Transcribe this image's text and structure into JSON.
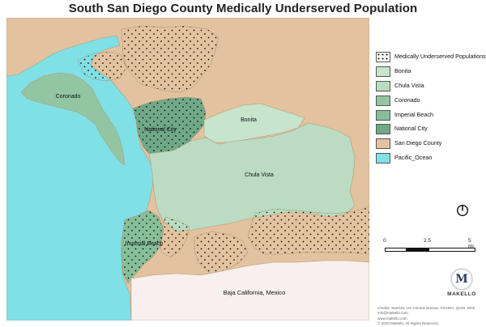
{
  "title": "South San Diego County Medically Underserved Population",
  "map": {
    "labels": {
      "coronado": "Coronado",
      "national_city": "National City",
      "bonita": "Bonita",
      "chula_vista": "Chula Vista",
      "imperial_beach": "Imperial Beach",
      "baja": "Baja California, Mexico"
    },
    "colors": {
      "san_diego_county": "#e3c39f",
      "pacific_ocean": "#7fe0e6",
      "chula_vista": "#bbdcc2",
      "bonita": "#c7e4cc",
      "coronado": "#92c6a3",
      "imperial_beach": "#86bf9a",
      "national_city": "#6fa987",
      "baja": "#f8f0ef"
    }
  },
  "legend": {
    "items": [
      {
        "label": "Medically Underserved Populations",
        "color": "#ffffff",
        "pattern": "dots"
      },
      {
        "label": "Bonita",
        "color": "#c7e4cc"
      },
      {
        "label": "Chula Vista",
        "color": "#bbdcc2"
      },
      {
        "label": "Coronado",
        "color": "#92c6a3"
      },
      {
        "label": "Imperial Beach",
        "color": "#86bf9a"
      },
      {
        "label": "National City",
        "color": "#6fa987"
      },
      {
        "label": "San Diego County",
        "color": "#e3c39f"
      },
      {
        "label": "Pacific_Ocean",
        "color": "#7fe0e6"
      }
    ]
  },
  "north_arrow_icon": "north-arrow-icon",
  "scale": {
    "tick_0": "0",
    "tick_1": "2.5",
    "tick_2": "5 mi"
  },
  "logo": {
    "letter": "M",
    "text": "MAKELLO"
  },
  "credits": [
    "Credits: SanGIS, US Census Bureau, ©OHHA, QGIS, BOE",
    "info@makello.com",
    "www.makello.com",
    "© 2020 Makello. All Rights Reserved."
  ]
}
